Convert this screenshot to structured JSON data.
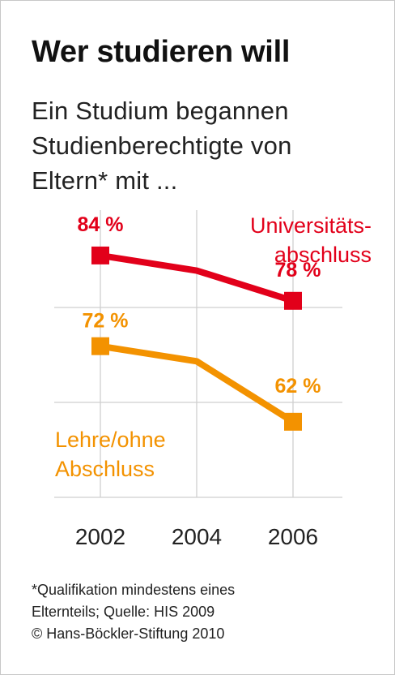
{
  "title": "Wer studieren will",
  "subtitle": "Ein Studium begannen Studienberechtigte von Eltern* mit ...",
  "footnote": {
    "line1": "*Qualifikation mindestens eines",
    "line2": "Elternteils; Quelle: HIS 2009",
    "line3": "© Hans-Böckler-Stiftung 2010"
  },
  "chart_data": {
    "type": "line",
    "x": [
      2002,
      2004,
      2006
    ],
    "x_tick_labels": [
      "2002",
      "2004",
      "2006"
    ],
    "ylim": [
      52,
      90
    ],
    "grid": true,
    "series": [
      {
        "name_lines": [
          "Universitäts-",
          "abschluss"
        ],
        "color": "#e2001a",
        "values": [
          84,
          82,
          78
        ],
        "marker_index": [
          0,
          2
        ],
        "data_labels": {
          "0": "84 %",
          "2": "78 %"
        }
      },
      {
        "name_lines": [
          "Lehre/ohne",
          "Abschluss"
        ],
        "color": "#f39200",
        "values": [
          72,
          70,
          62
        ],
        "marker_index": [
          0,
          2
        ],
        "data_labels": {
          "0": "72 %",
          "2": "62 %"
        }
      }
    ]
  }
}
